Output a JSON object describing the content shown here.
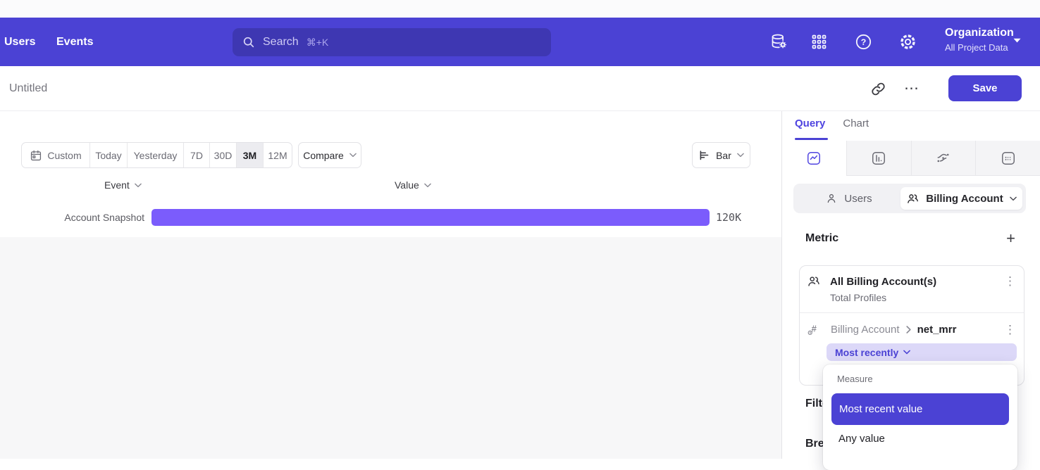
{
  "nav": {
    "links": [
      "Users",
      "Events"
    ],
    "search": {
      "placeholder": "Search",
      "shortcut": "⌘+K"
    },
    "icons": [
      "data-management-icon",
      "apps-grid-icon",
      "help-icon",
      "settings-icon"
    ],
    "org": {
      "name": "Organization",
      "subtitle": "All Project Data"
    }
  },
  "report_bar": {
    "title": "Untitled",
    "save_label": "Save"
  },
  "toolbar": {
    "ranges": [
      "Custom",
      "Today",
      "Yesterday",
      "7D",
      "30D",
      "3M",
      "12M"
    ],
    "active_range": "3M",
    "compare_label": "Compare",
    "chart_type": "Bar"
  },
  "chart": {
    "event_header": "Event",
    "value_header": "Value",
    "chart_data": {
      "type": "bar",
      "orientation": "horizontal",
      "categories": [
        "Account Snapshot"
      ],
      "values": [
        120000
      ],
      "value_labels": [
        "120K"
      ],
      "bar_color": "#7b5cfc"
    }
  },
  "panel": {
    "tabs": [
      {
        "label": "Query",
        "active": true
      },
      {
        "label": "Chart",
        "active": false
      }
    ],
    "view_icons": [
      "insights-line-icon",
      "bar-chart-icon",
      "flows-icon",
      "retention-icon"
    ],
    "entity_toggle": {
      "options": [
        "Users",
        "Billing Account"
      ],
      "selected": "Billing Account"
    },
    "sections": {
      "metric": "Metric",
      "filter": "Filter",
      "breakdown": "Breakdown"
    },
    "metric_card": {
      "profile_row": {
        "title": "All Billing Account(s)",
        "subtitle": "Total Profiles"
      },
      "property_row": {
        "entity": "Billing Account",
        "property": "net_mrr",
        "aggregation": "Most recently"
      }
    }
  },
  "dropdown": {
    "label": "Measure",
    "options": [
      "Most recent value",
      "Any value"
    ],
    "selected": "Most recent value"
  },
  "glyphs": {
    "plus": "+",
    "kebab": "⋮",
    "ellipsis": "⋯"
  },
  "colors": {
    "brand": "#4b42d4",
    "bar": "#7b5cfc",
    "pill_bg": "#dcd8f8",
    "panel_border": "#e4e4e8"
  }
}
